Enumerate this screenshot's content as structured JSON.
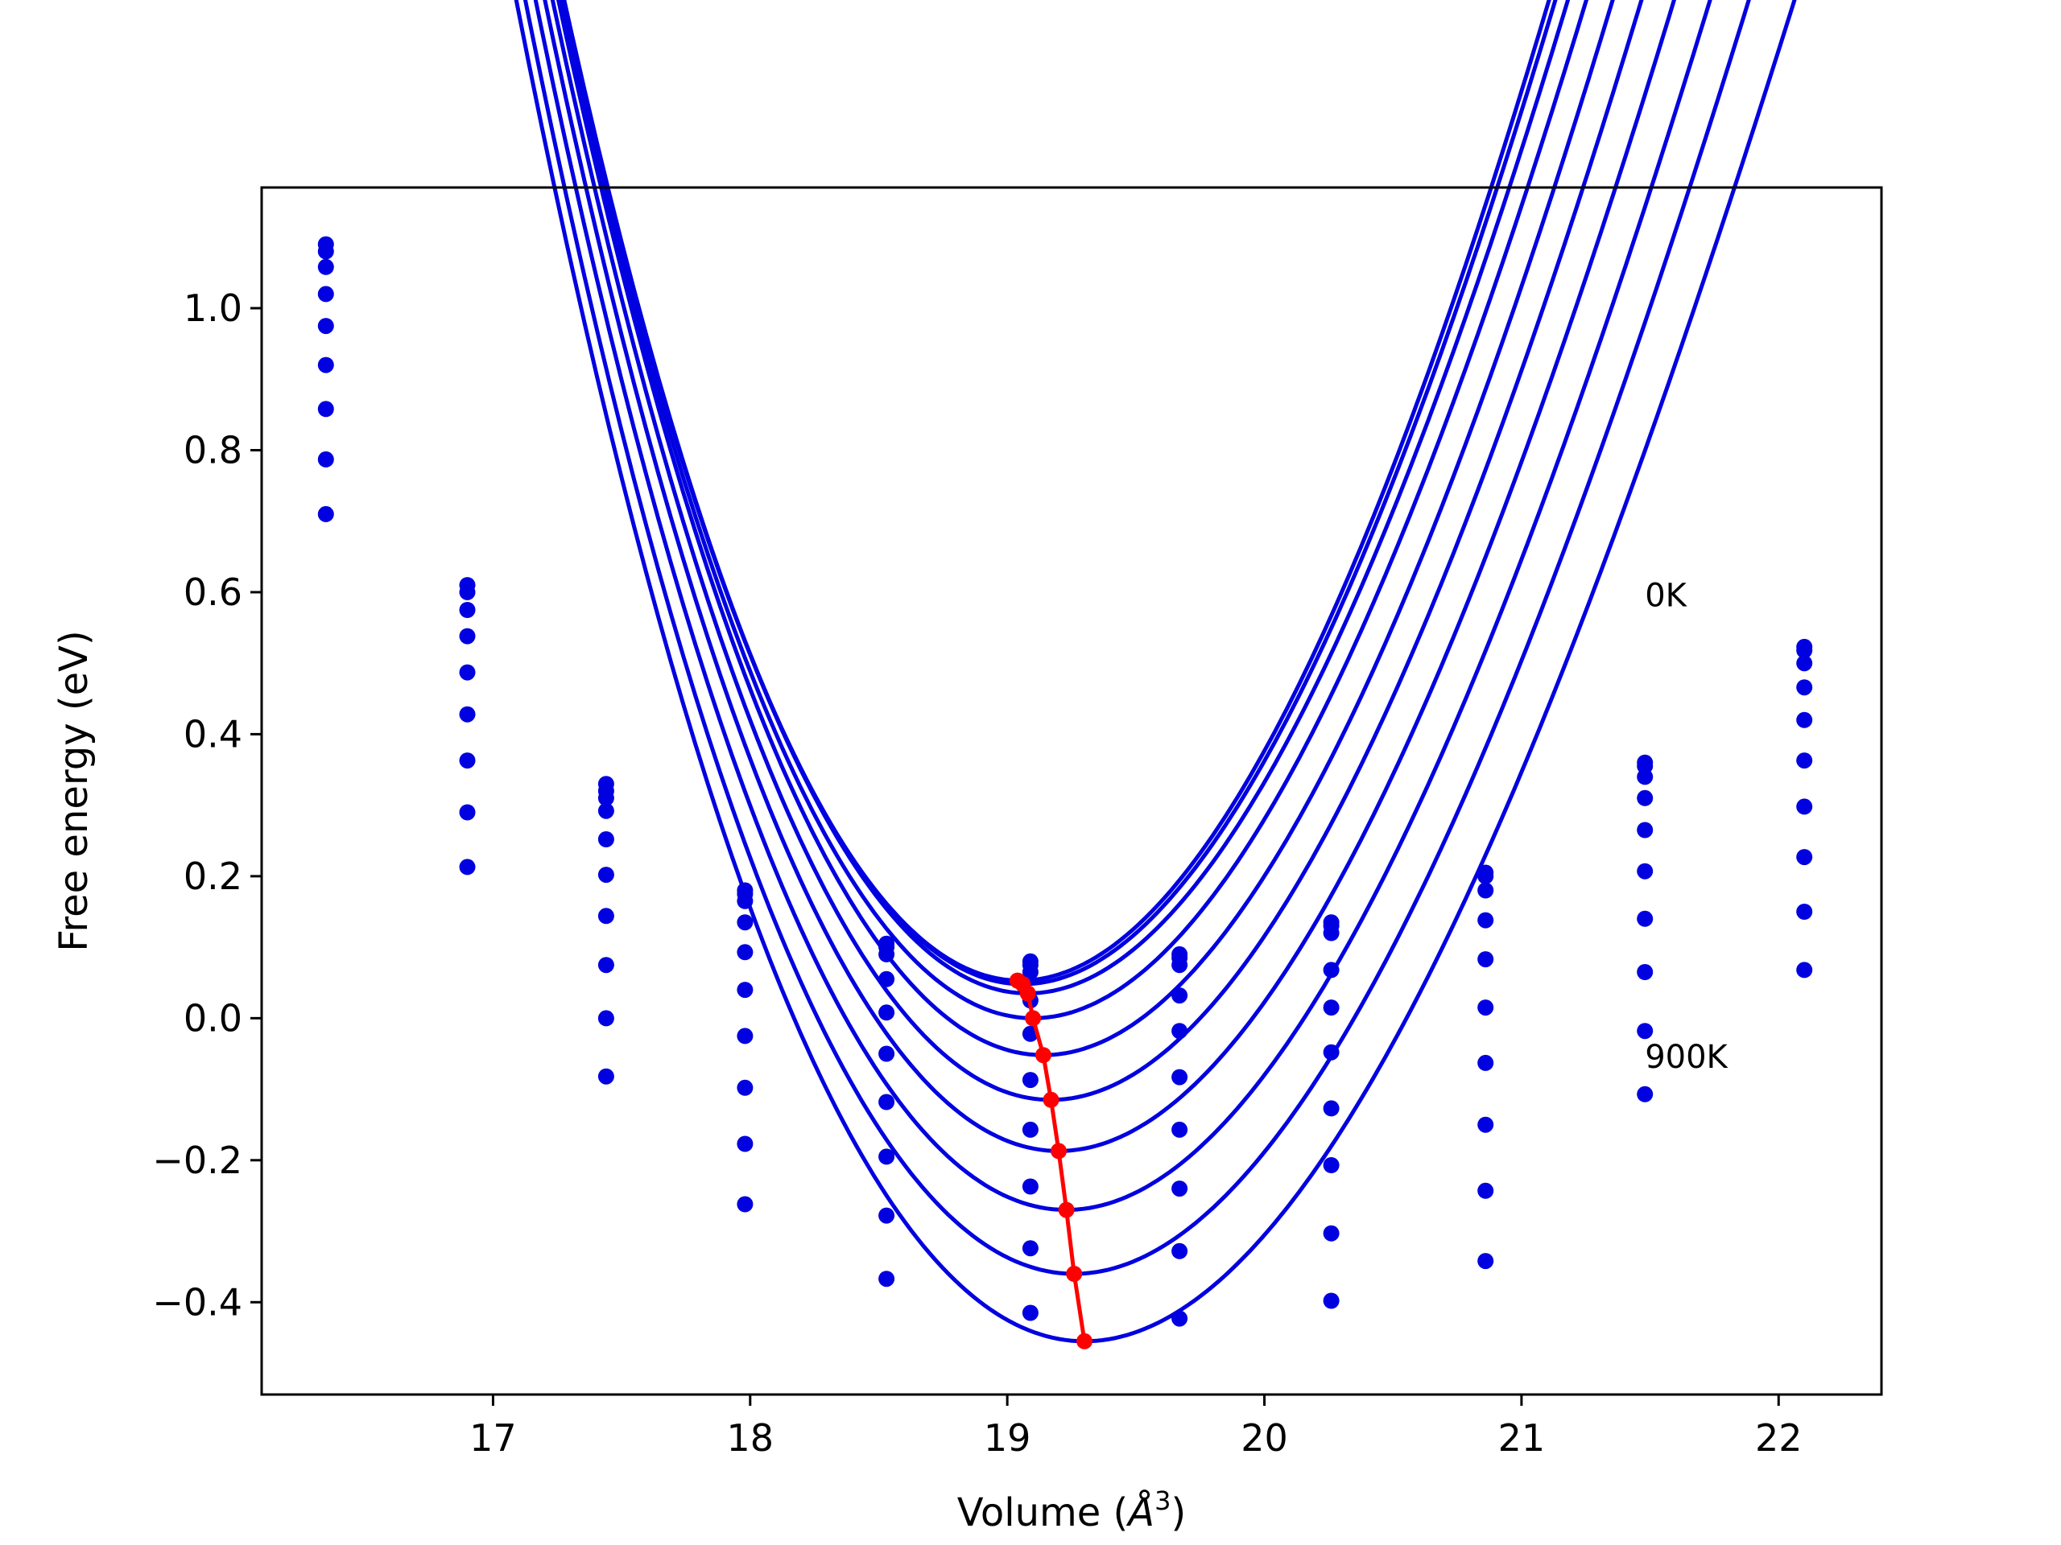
{
  "chart_data": {
    "type": "line",
    "title": "",
    "xlabel": "Volume (Å³)",
    "xlabel_parts": {
      "prefix": "Volume (",
      "unit_letter": "Å",
      "unit_power": "3",
      "suffix": ")"
    },
    "ylabel": "Free energy (eV)",
    "xlim": [
      16.1,
      22.4
    ],
    "ylim": [
      -0.53,
      1.17
    ],
    "x_ticks": [
      17,
      18,
      19,
      20,
      21,
      22
    ],
    "x_tick_labels": [
      "17",
      "18",
      "19",
      "20",
      "21",
      "22"
    ],
    "y_ticks": [
      -0.4,
      -0.2,
      0.0,
      0.2,
      0.4,
      0.6,
      0.8,
      1.0
    ],
    "y_tick_labels": [
      "−0.4",
      "−0.2",
      "0.0",
      "0.2",
      "0.4",
      "0.6",
      "0.8",
      "1.0"
    ],
    "grid": false,
    "annotations": [
      {
        "text": "0K",
        "x": 21.48,
        "y": 0.58
      },
      {
        "text": "900K",
        "x": 21.48,
        "y": -0.07
      }
    ],
    "colors": {
      "fits": "#0000e0",
      "points": "#0000e0",
      "minima": "#ff0000",
      "frame": "#000000"
    },
    "volumes": [
      16.35,
      16.9,
      17.44,
      17.98,
      18.53,
      19.09,
      19.67,
      20.26,
      20.86,
      21.48,
      22.1
    ],
    "series": [
      {
        "fit": {
          "V0": 19.05,
          "E0": 0.053,
          "A": 0.386,
          "B": -0.029
        },
        "points": [
          1.09,
          0.61,
          0.33,
          0.18,
          0.105,
          0.08,
          0.09,
          0.135,
          0.205,
          0.36,
          0.523
        ]
      },
      {
        "fit": {
          "V0": 19.06,
          "E0": 0.048,
          "A": 0.383,
          "B": -0.029
        },
        "points": [
          1.08,
          0.6,
          0.32,
          0.175,
          0.1,
          0.075,
          0.085,
          0.13,
          0.2,
          0.355,
          0.518
        ]
      },
      {
        "fit": {
          "V0": 19.08,
          "E0": 0.035,
          "A": 0.378,
          "B": -0.029
        },
        "points": [
          1.058,
          0.575,
          0.31,
          0.165,
          0.09,
          0.065,
          0.075,
          0.12,
          0.18,
          0.34,
          0.5
        ]
      },
      {
        "fit": {
          "V0": 19.1,
          "E0": 0.0,
          "A": 0.372,
          "B": -0.029
        },
        "points": [
          1.02,
          0.538,
          0.292,
          0.135,
          0.055,
          0.025,
          0.032,
          0.068,
          0.138,
          0.31,
          0.466
        ]
      },
      {
        "fit": {
          "V0": 19.14,
          "E0": -0.052,
          "A": 0.365,
          "B": -0.028
        },
        "points": [
          0.975,
          0.487,
          0.252,
          0.093,
          0.008,
          -0.022,
          -0.018,
          0.015,
          0.083,
          0.265,
          0.42
        ]
      },
      {
        "fit": {
          "V0": 19.17,
          "E0": -0.115,
          "A": 0.358,
          "B": -0.028
        },
        "points": [
          0.92,
          0.428,
          0.202,
          0.04,
          -0.05,
          -0.087,
          -0.083,
          -0.048,
          0.015,
          0.207,
          0.363
        ]
      },
      {
        "fit": {
          "V0": 19.2,
          "E0": -0.187,
          "A": 0.35,
          "B": -0.028
        },
        "points": [
          0.858,
          0.363,
          0.144,
          -0.025,
          -0.118,
          -0.157,
          -0.157,
          -0.127,
          -0.063,
          0.14,
          0.298
        ]
      },
      {
        "fit": {
          "V0": 19.23,
          "E0": -0.27,
          "A": 0.342,
          "B": -0.028
        },
        "points": [
          0.787,
          0.29,
          0.075,
          -0.098,
          -0.195,
          -0.237,
          -0.24,
          -0.207,
          -0.15,
          0.065,
          0.227
        ]
      },
      {
        "fit": {
          "V0": 19.26,
          "E0": -0.36,
          "A": 0.334,
          "B": -0.028
        },
        "points": [
          0.71,
          0.213,
          0.0,
          -0.177,
          -0.278,
          -0.324,
          -0.328,
          -0.303,
          -0.243,
          -0.018,
          0.15
        ]
      },
      {
        "fit": {
          "V0": 19.3,
          "E0": -0.455,
          "A": 0.325,
          "B": -0.028
        },
        "points": [
          null,
          null,
          -0.082,
          -0.262,
          -0.367,
          -0.415,
          -0.423,
          -0.398,
          -0.342,
          -0.107,
          0.068
        ]
      }
    ],
    "minima": {
      "x": [
        19.04,
        19.06,
        19.08,
        19.1,
        19.14,
        19.17,
        19.2,
        19.23,
        19.26,
        19.3
      ],
      "y": [
        0.053,
        0.048,
        0.035,
        0.0,
        -0.052,
        -0.115,
        -0.187,
        -0.27,
        -0.36,
        -0.455
      ]
    }
  }
}
